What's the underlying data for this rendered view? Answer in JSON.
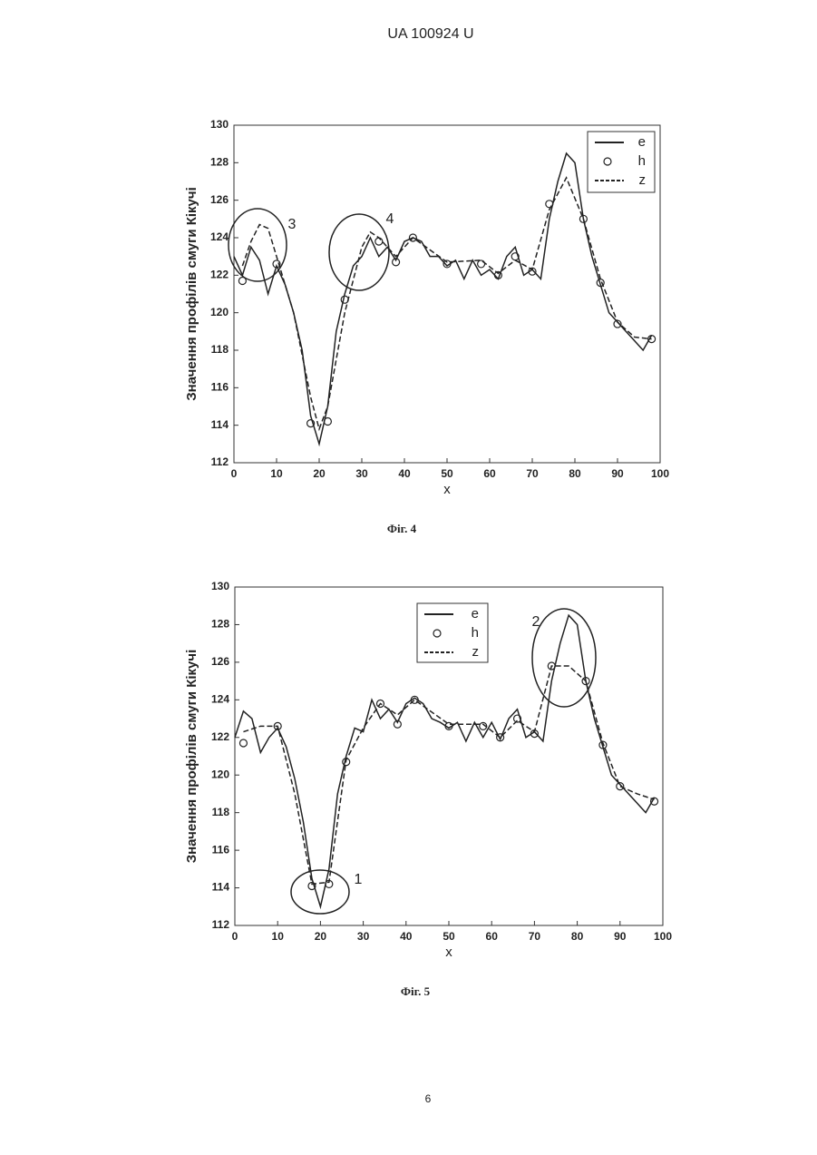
{
  "header": "UA   100924   U",
  "page_number": "6",
  "chart_data": [
    {
      "type": "line",
      "caption": "Фіг. 4",
      "xlabel": "x",
      "ylabel": "Значення профілів смуги Кікучі",
      "xlim": [
        0,
        100
      ],
      "xticks": [
        0,
        10,
        20,
        30,
        40,
        50,
        60,
        70,
        80,
        90,
        100
      ],
      "ylim": [
        112,
        130
      ],
      "yticks": [
        112,
        114,
        116,
        118,
        120,
        122,
        124,
        126,
        128,
        130
      ],
      "legend": "upper right",
      "annotations": [
        "3",
        "4"
      ],
      "series": [
        {
          "name": "e",
          "color": "#222222",
          "style": "solid",
          "x": [
            0,
            2,
            4,
            6,
            8,
            10,
            12,
            14,
            16,
            18,
            20,
            22,
            24,
            26,
            28,
            30,
            32,
            34,
            36,
            38,
            40,
            42,
            44,
            46,
            48,
            50,
            52,
            54,
            56,
            58,
            60,
            62,
            64,
            66,
            68,
            70,
            72,
            74,
            76,
            78,
            80,
            82,
            84,
            86,
            88,
            90,
            92,
            94,
            96,
            98
          ],
          "values": [
            123.0,
            122.0,
            123.5,
            122.8,
            121.0,
            122.5,
            121.5,
            120.0,
            118.0,
            114.5,
            113.0,
            115.0,
            119.0,
            121.0,
            122.5,
            123.0,
            124.0,
            123.0,
            123.5,
            122.8,
            123.8,
            124.0,
            123.8,
            123.0,
            123.0,
            122.5,
            122.8,
            121.8,
            122.8,
            122.0,
            122.3,
            121.8,
            123.0,
            123.5,
            122.0,
            122.3,
            121.8,
            125.0,
            127.0,
            128.5,
            128.0,
            125.0,
            123.0,
            121.5,
            120.0,
            119.5,
            119.0,
            118.5,
            118.0,
            118.8
          ]
        },
        {
          "name": "h",
          "color": "#222222",
          "style": "markers",
          "x": [
            2,
            10,
            18,
            22,
            26,
            34,
            38,
            42,
            50,
            58,
            62,
            66,
            70,
            74,
            82,
            86,
            90,
            98
          ],
          "values": [
            121.7,
            122.6,
            114.1,
            114.2,
            120.7,
            123.8,
            122.7,
            124.0,
            122.6,
            122.6,
            122.0,
            123.0,
            122.2,
            125.8,
            125.0,
            121.6,
            119.4,
            118.6
          ]
        },
        {
          "name": "z",
          "color": "#222222",
          "style": "dashed",
          "x": [
            2,
            4,
            6,
            8,
            10,
            14,
            18,
            20,
            22,
            26,
            30,
            32,
            34,
            38,
            42,
            50,
            58,
            62,
            66,
            70,
            74,
            78,
            82,
            86,
            90,
            94,
            98
          ],
          "values": [
            122.5,
            123.8,
            124.7,
            124.5,
            123.0,
            120.0,
            115.5,
            113.8,
            115.0,
            120.0,
            123.5,
            124.3,
            124.0,
            123.0,
            124.0,
            122.7,
            122.8,
            122.1,
            122.8,
            122.3,
            125.5,
            127.2,
            125.0,
            121.8,
            119.5,
            118.7,
            118.6
          ]
        }
      ]
    },
    {
      "type": "line",
      "caption": "Фіг. 5",
      "xlabel": "x",
      "ylabel": "Значення профілів смуги Кікучі",
      "xlim": [
        0,
        100
      ],
      "xticks": [
        0,
        10,
        20,
        30,
        40,
        50,
        60,
        70,
        80,
        90,
        100
      ],
      "ylim": [
        112,
        130
      ],
      "yticks": [
        112,
        114,
        116,
        118,
        120,
        122,
        124,
        126,
        128,
        130
      ],
      "legend": "upper center",
      "annotations": [
        "1",
        "2"
      ],
      "series": [
        {
          "name": "e",
          "color": "#222222",
          "style": "solid",
          "x": [
            0,
            2,
            4,
            6,
            8,
            10,
            12,
            14,
            16,
            18,
            20,
            22,
            24,
            26,
            28,
            30,
            32,
            34,
            36,
            38,
            40,
            42,
            44,
            46,
            48,
            50,
            52,
            54,
            56,
            58,
            60,
            62,
            64,
            66,
            68,
            70,
            72,
            74,
            76,
            78,
            80,
            82,
            84,
            86,
            88,
            90,
            92,
            94,
            96,
            98
          ],
          "values": [
            122.0,
            123.4,
            123.0,
            121.2,
            122.0,
            122.5,
            121.5,
            119.8,
            117.5,
            114.5,
            113.0,
            115.0,
            119.0,
            121.0,
            122.5,
            122.3,
            124.0,
            123.0,
            123.5,
            122.8,
            123.8,
            124.1,
            123.8,
            123.0,
            122.8,
            122.5,
            122.8,
            121.8,
            122.8,
            122.0,
            122.8,
            121.9,
            123.0,
            123.5,
            122.0,
            122.3,
            121.8,
            125.0,
            127.0,
            128.5,
            128.0,
            125.0,
            123.0,
            121.5,
            120.0,
            119.5,
            119.0,
            118.5,
            118.0,
            118.8
          ]
        },
        {
          "name": "h",
          "color": "#222222",
          "style": "markers",
          "x": [
            2,
            10,
            18,
            22,
            26,
            34,
            38,
            42,
            50,
            58,
            62,
            66,
            70,
            74,
            82,
            86,
            90,
            98
          ],
          "values": [
            121.7,
            122.6,
            114.1,
            114.2,
            120.7,
            123.8,
            122.7,
            124.0,
            122.6,
            122.6,
            122.0,
            123.0,
            122.2,
            125.8,
            125.0,
            121.6,
            119.4,
            118.6
          ]
        },
        {
          "name": "z",
          "color": "#222222",
          "style": "dashed",
          "x": [
            2,
            6,
            10,
            14,
            18,
            22,
            26,
            30,
            34,
            38,
            42,
            50,
            58,
            62,
            66,
            70,
            74,
            78,
            82,
            86,
            90,
            94,
            98
          ],
          "values": [
            122.3,
            122.6,
            122.6,
            119.0,
            114.2,
            114.3,
            120.8,
            122.5,
            123.8,
            123.2,
            124.0,
            122.7,
            122.7,
            122.0,
            122.9,
            122.3,
            125.8,
            125.8,
            125.0,
            121.7,
            119.4,
            119.0,
            118.7
          ]
        }
      ]
    }
  ]
}
